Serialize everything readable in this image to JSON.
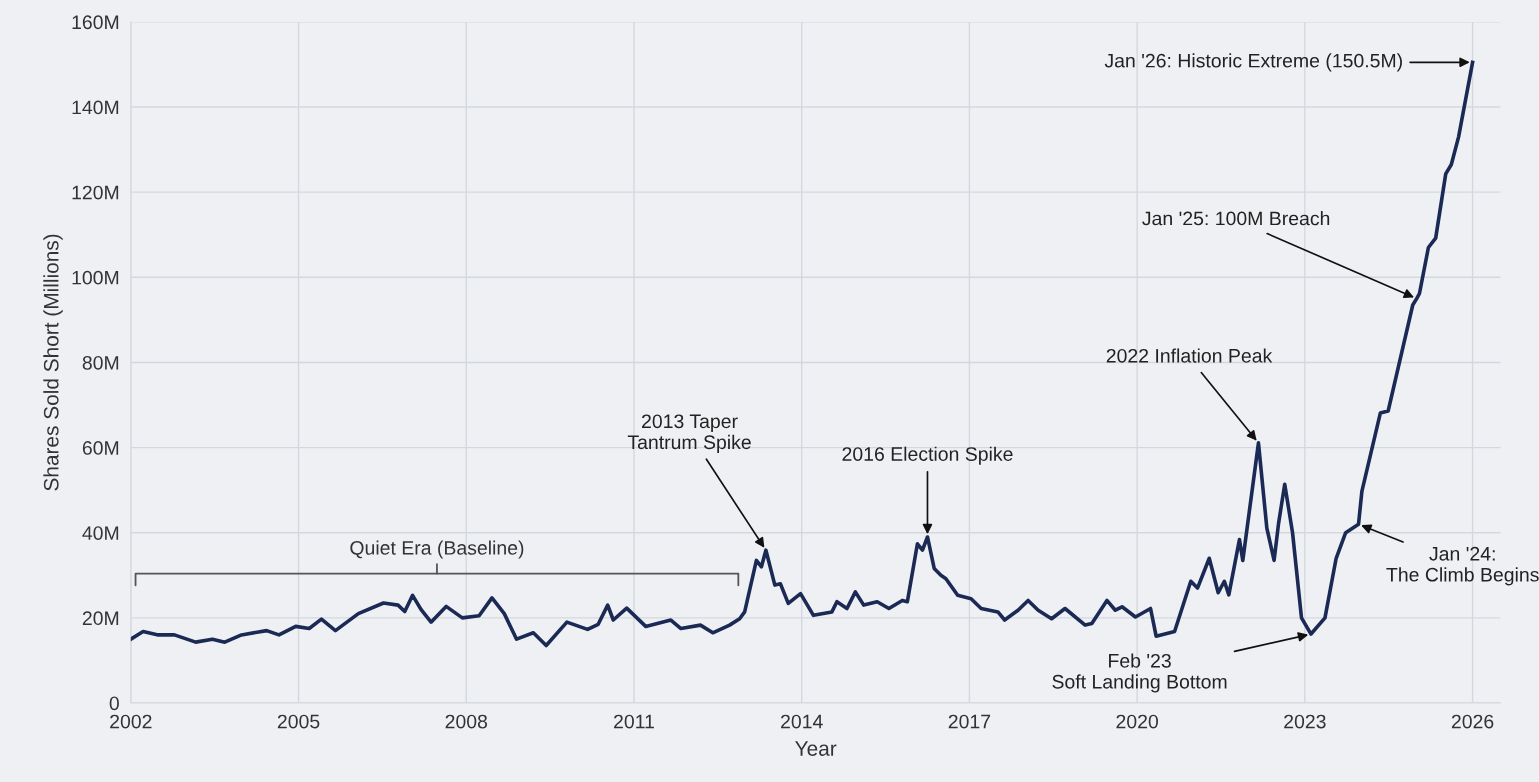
{
  "chart_data": {
    "type": "line",
    "xlabel": "Year",
    "ylabel": "Shares Sold Short (Millions)",
    "xlim": [
      2002,
      2026.5
    ],
    "xticks": [
      2002,
      2005,
      2008,
      2011,
      2014,
      2017,
      2020,
      2023,
      2026
    ],
    "ylim": [
      0,
      160
    ],
    "yticks": [
      {
        "value": 0,
        "label": "0"
      },
      {
        "value": 20,
        "label": "20M"
      },
      {
        "value": 40,
        "label": "40M"
      },
      {
        "value": 60,
        "label": "60M"
      },
      {
        "value": 80,
        "label": "80M"
      },
      {
        "value": 100,
        "label": "100M"
      },
      {
        "value": 120,
        "label": "120M"
      },
      {
        "value": 140,
        "label": "140M"
      },
      {
        "value": 160,
        "label": "160M"
      }
    ],
    "grid": true,
    "marker": "none",
    "line_style": "solid",
    "series": [
      {
        "color": "#1b2a55",
        "x": [
          2002.0,
          2002.22,
          2002.49,
          2002.78,
          2003.16,
          2003.46,
          2003.68,
          2003.98,
          2004.43,
          2004.65,
          2004.95,
          2005.19,
          2005.41,
          2005.66,
          2006.07,
          2006.52,
          2006.78,
          2006.9,
          2007.04,
          2007.19,
          2007.37,
          2007.64,
          2007.93,
          2008.23,
          2008.46,
          2008.68,
          2008.9,
          2009.2,
          2009.43,
          2009.8,
          2010.17,
          2010.36,
          2010.53,
          2010.63,
          2010.87,
          2011.21,
          2011.66,
          2011.84,
          2012.19,
          2012.41,
          2012.71,
          2012.89,
          2012.98,
          2013.19,
          2013.28,
          2013.36,
          2013.52,
          2013.62,
          2013.76,
          2013.98,
          2014.21,
          2014.54,
          2014.63,
          2014.81,
          2014.96,
          2015.11,
          2015.35,
          2015.56,
          2015.8,
          2015.89,
          2016.07,
          2016.16,
          2016.25,
          2016.37,
          2016.49,
          2016.58,
          2016.79,
          2017.03,
          2017.21,
          2017.51,
          2017.63,
          2017.87,
          2018.05,
          2018.23,
          2018.47,
          2018.71,
          2019.07,
          2019.19,
          2019.46,
          2019.61,
          2019.73,
          2019.97,
          2020.24,
          2020.34,
          2020.67,
          2020.96,
          2021.08,
          2021.29,
          2021.45,
          2021.56,
          2021.64,
          2021.83,
          2021.89,
          2022.17,
          2022.32,
          2022.45,
          2022.53,
          2022.64,
          2022.78,
          2022.94,
          2023.11,
          2023.36,
          2023.56,
          2023.73,
          2023.96,
          2024.02,
          2024.35,
          2024.49,
          2024.93,
          2025.0,
          2025.05,
          2025.21,
          2025.34,
          2025.52,
          2025.62,
          2025.75,
          2026.0
        ],
        "values": [
          15.0,
          16.8,
          16,
          16,
          14.3,
          15,
          14.3,
          16,
          17,
          16,
          18,
          17.5,
          19.7,
          17,
          21,
          23.5,
          23,
          21.5,
          25.3,
          22,
          19,
          22.7,
          20,
          20.5,
          24.7,
          21,
          15,
          16.5,
          13.5,
          19,
          17.3,
          18.5,
          23,
          19.5,
          22.3,
          18,
          19.5,
          17.5,
          18.3,
          16.5,
          18.3,
          19.8,
          21.4,
          33.5,
          32,
          35.9,
          27.7,
          28,
          23.4,
          25.7,
          20.6,
          21.4,
          23.8,
          22.2,
          26.1,
          23,
          23.8,
          22.2,
          24.1,
          23.8,
          37.4,
          35.9,
          39,
          31.6,
          30,
          29.2,
          25.3,
          24.5,
          22.2,
          21.4,
          19.5,
          21.8,
          24.1,
          21.8,
          19.8,
          22.2,
          18.3,
          18.7,
          24.1,
          21.8,
          22.6,
          20.2,
          22.2,
          15.7,
          16.8,
          28.6,
          27,
          34,
          25.9,
          28.6,
          25.4,
          38.4,
          33.5,
          61.1,
          41.1,
          33.5,
          42.2,
          51.4,
          40,
          20,
          16.2,
          20,
          34,
          40,
          42,
          49.7,
          68.1,
          68.6,
          93.5,
          95,
          96.2,
          107,
          109.2,
          124.3,
          126.5,
          133,
          150.5
        ]
      }
    ],
    "annotations": [
      "Quiet Era (Baseline)",
      {
        "text": "Jan '26: Historic Extreme (150.5M)",
        "x": 2026.0,
        "y": 150.5
      },
      {
        "text": "Jan '25: 100M Breach",
        "x": 2025.0,
        "y": 95
      },
      {
        "text": "2022 Inflation Peak",
        "x": 2022.17,
        "y": 61.1
      },
      {
        "text": "Jan '24:\nThe Climb Begins",
        "x": 2023.96,
        "y": 42
      },
      {
        "text": "Feb '23\nSoft Landing Bottom",
        "x": 2023.11,
        "y": 16.2
      },
      {
        "text": "2016 Election Spike",
        "x": 2016.25,
        "y": 39
      },
      {
        "text": "2013 Taper\nTantrum Spike",
        "x": 2013.36,
        "y": 35.9
      }
    ]
  }
}
